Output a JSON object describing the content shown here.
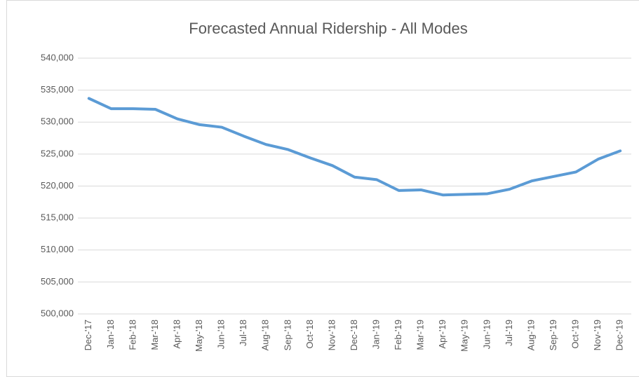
{
  "chart_data": {
    "type": "line",
    "title": "Forecasted Annual Ridership - All Modes",
    "categories": [
      "Dec-'17",
      "Jan-'18",
      "Feb-'18",
      "Mar-'18",
      "Apr-'18",
      "May-'18",
      "Jun-'18",
      "Jul-'18",
      "Aug-'18",
      "Sep-'18",
      "Oct-'18",
      "Nov-'18",
      "Dec-'18",
      "Jan-'19",
      "Feb-'19",
      "Mar-'19",
      "Apr-'19",
      "May-'19",
      "Jun-'19",
      "Jul-'19",
      "Aug-'19",
      "Sep-'19",
      "Oct-'19",
      "Nov-'19",
      "Dec-'19"
    ],
    "series": [
      {
        "color": "#5b9bd5",
        "values": [
          533700,
          532100,
          532100,
          532000,
          530500,
          529600,
          529200,
          527800,
          526500,
          525700,
          524400,
          523200,
          521400,
          521000,
          519300,
          519400,
          518600,
          518700,
          518800,
          519500,
          520800,
          521500,
          522200,
          524200,
          525500
        ]
      }
    ],
    "ylim": [
      500000,
      540000
    ],
    "yticks": [
      {
        "value": 500000,
        "label": "500,000"
      },
      {
        "value": 505000,
        "label": "505,000"
      },
      {
        "value": 510000,
        "label": "510,000"
      },
      {
        "value": 515000,
        "label": "515,000"
      },
      {
        "value": 520000,
        "label": "520,000"
      },
      {
        "value": 525000,
        "label": "525,000"
      },
      {
        "value": 530000,
        "label": "530,000"
      },
      {
        "value": 535000,
        "label": "535,000"
      },
      {
        "value": 540000,
        "label": "540,000"
      }
    ],
    "grid": true
  }
}
